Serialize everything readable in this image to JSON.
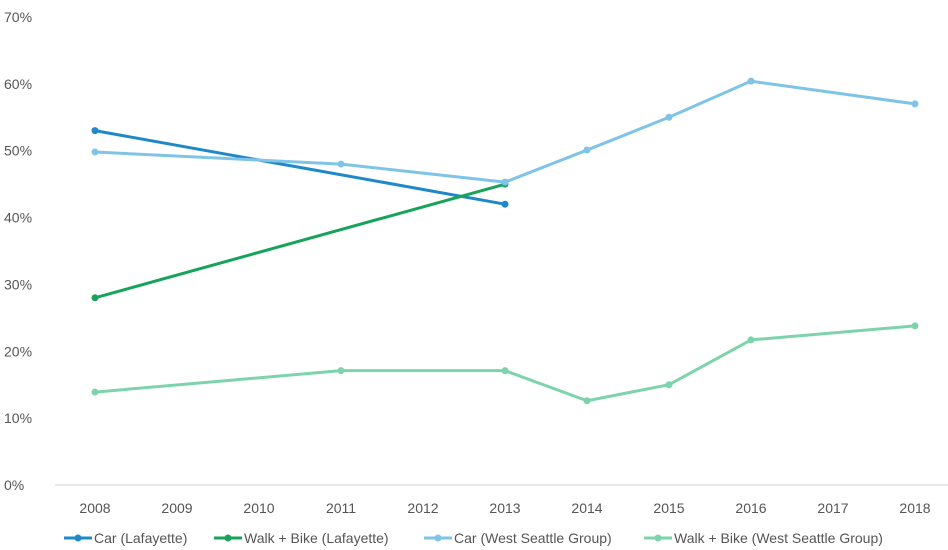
{
  "chart_data": {
    "type": "line",
    "title": "",
    "xlabel": "",
    "ylabel": "",
    "categories": [
      "2008",
      "2009",
      "2010",
      "2011",
      "2012",
      "2013",
      "2014",
      "2015",
      "2016",
      "2017",
      "2018"
    ],
    "ylim": [
      0,
      70
    ],
    "yticks": [
      0,
      10,
      20,
      30,
      40,
      50,
      60,
      70
    ],
    "ytick_labels": [
      "0%",
      "10%",
      "20%",
      "30%",
      "40%",
      "50%",
      "60%",
      "70%"
    ],
    "grid": false,
    "legend_position": "bottom",
    "series": [
      {
        "name": "Car (Lafayette)",
        "color": "#1f88c9",
        "points": [
          {
            "x": "2008",
            "y": 53
          },
          {
            "x": "2013",
            "y": 42
          }
        ]
      },
      {
        "name": "Walk + Bike (Lafayette)",
        "color": "#17a35a",
        "points": [
          {
            "x": "2008",
            "y": 28
          },
          {
            "x": "2013",
            "y": 45
          }
        ]
      },
      {
        "name": "Car (West Seattle Group)",
        "color": "#7fc4e6",
        "points": [
          {
            "x": "2008",
            "y": 49.8
          },
          {
            "x": "2011",
            "y": 48
          },
          {
            "x": "2013",
            "y": 45.3
          },
          {
            "x": "2014",
            "y": 50.1
          },
          {
            "x": "2015",
            "y": 55
          },
          {
            "x": "2016",
            "y": 60.4
          },
          {
            "x": "2018",
            "y": 57
          }
        ]
      },
      {
        "name": "Walk + Bike (West Seattle Group)",
        "color": "#7dd3ab",
        "points": [
          {
            "x": "2008",
            "y": 13.9
          },
          {
            "x": "2011",
            "y": 17.1
          },
          {
            "x": "2013",
            "y": 17.1
          },
          {
            "x": "2014",
            "y": 12.6
          },
          {
            "x": "2015",
            "y": 15
          },
          {
            "x": "2016",
            "y": 21.7
          },
          {
            "x": "2018",
            "y": 23.8
          }
        ]
      }
    ]
  }
}
